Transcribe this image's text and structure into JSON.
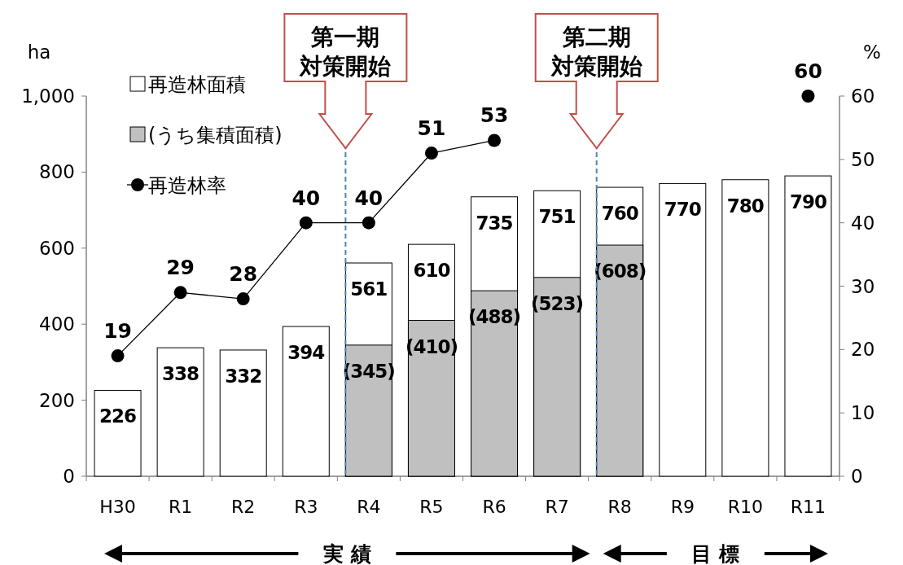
{
  "chart_data": {
    "type": "bar",
    "categories": [
      "H30",
      "R1",
      "R2",
      "R3",
      "R4",
      "R5",
      "R6",
      "R7",
      "R8",
      "R9",
      "R10",
      "R11"
    ],
    "ylabel": "ha",
    "y2label": "%",
    "ylim": [
      0,
      1000
    ],
    "yticks": [
      0,
      200,
      400,
      600,
      800,
      {
        "value": 1000,
        "label": "1,000"
      }
    ],
    "y2lim": [
      0,
      60
    ],
    "y2ticks": [
      0,
      10,
      20,
      30,
      40,
      50,
      60
    ],
    "legend": "top left",
    "grid": false,
    "series": [
      {
        "name": "再造林面積",
        "color": "#ffffff",
        "values": [
          226,
          338,
          332,
          394,
          561,
          610,
          735,
          751,
          760,
          770,
          780,
          790
        ],
        "value_labels": [
          "226",
          "338",
          "332",
          "394",
          "561",
          "610",
          "735",
          "751",
          "760",
          "770",
          "780",
          "790"
        ]
      },
      {
        "name": "(うち集積面積)",
        "color": "#c0c0c0",
        "values": [
          null,
          null,
          null,
          null,
          345,
          410,
          488,
          523,
          608,
          null,
          null,
          null
        ],
        "value_labels": [
          null,
          null,
          null,
          null,
          "(345)",
          "(410)",
          "(488)",
          "(523)",
          "(608)",
          null,
          null,
          null
        ]
      },
      {
        "name": "再造林率",
        "type": "line",
        "axis": "y2",
        "color": "#000000",
        "marker": "circle",
        "values": [
          19,
          29,
          28,
          40,
          40,
          51,
          53,
          null,
          null,
          null,
          null,
          60
        ],
        "value_labels": [
          "19",
          "29",
          "28",
          "40",
          "40",
          "51",
          "53",
          null,
          null,
          null,
          null,
          "60"
        ]
      }
    ],
    "ref_lines": [
      {
        "axis": "x",
        "value": "R4",
        "label": "第一期対策開始",
        "color": "#4f81bd",
        "line_style": "dashed"
      },
      {
        "axis": "x",
        "value": "R8",
        "label": "第二期対策開始",
        "color": "#4f81bd",
        "line_style": "dashed"
      }
    ],
    "annotations": [
      "実 績",
      "目 標"
    ]
  }
}
